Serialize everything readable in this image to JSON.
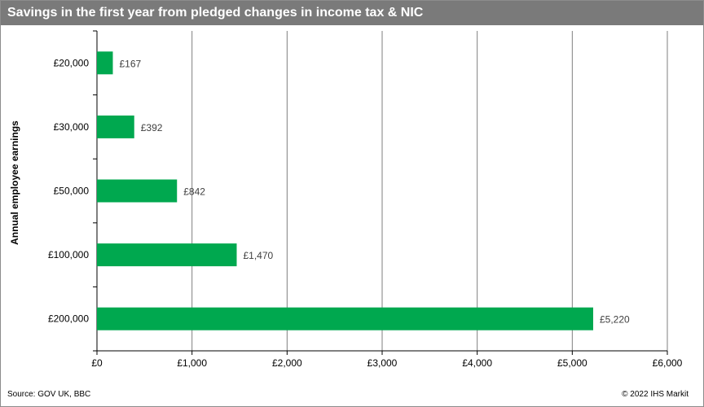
{
  "header": {
    "title": "Savings in the first year from pledged changes in income tax & NIC"
  },
  "footer": {
    "source": "Source: GOV UK, BBC",
    "copyright": "© 2022  IHS Markit"
  },
  "colors": {
    "bar": "#00a84f",
    "title_bg": "#7a7a7a",
    "gridline": "#7f7f7f"
  },
  "chart_data": {
    "type": "bar",
    "orientation": "horizontal",
    "title": "Savings in the first year from pledged changes in income tax & NIC",
    "xlabel": "",
    "ylabel": "Annual employee earnings",
    "categories": [
      "£20,000",
      "£30,000",
      "£50,000",
      "£100,000",
      "£200,000"
    ],
    "values": [
      167,
      392,
      842,
      1470,
      5220
    ],
    "data_labels": [
      "£167",
      "£392",
      "£842",
      "£1,470",
      "£5,220"
    ],
    "xlim": [
      0,
      6000
    ],
    "xticks": [
      0,
      1000,
      2000,
      3000,
      4000,
      5000,
      6000
    ],
    "xtick_labels": [
      "£0",
      "£1,000",
      "£2,000",
      "£3,000",
      "£4,000",
      "£5,000",
      "£6,000"
    ],
    "grid": true,
    "legend": "none"
  }
}
